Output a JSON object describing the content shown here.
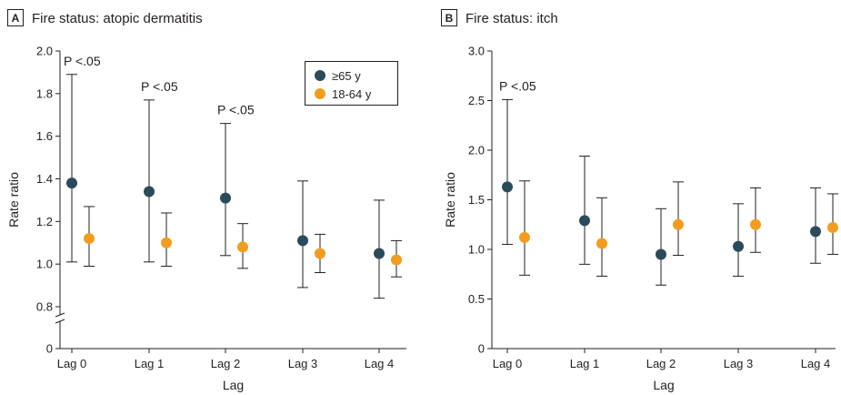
{
  "chart_data": [
    {
      "type": "scatter",
      "panel_letter": "A",
      "title": "Fire status: atopic dermatitis",
      "xlabel": "Lag",
      "ylabel": "Rate ratio",
      "categories": [
        "Lag 0",
        "Lag 1",
        "Lag 2",
        "Lag 3",
        "Lag 4"
      ],
      "ylim": [
        0,
        2.0
      ],
      "yticks": [
        "0",
        "0.8",
        "1.0",
        "1.2",
        "1.4",
        "1.6",
        "1.8",
        "2.0"
      ],
      "ytick_values": [
        0,
        0.8,
        1.0,
        1.2,
        1.4,
        1.6,
        1.8,
        2.0
      ],
      "axis_break": true,
      "legend_position": "top-right",
      "series": [
        {
          "name": "≥65 y",
          "color": "#2b4a5a",
          "values": [
            1.38,
            1.34,
            1.31,
            1.11,
            1.05
          ],
          "lower": [
            1.01,
            1.01,
            1.04,
            0.89,
            0.84
          ],
          "upper": [
            1.89,
            1.77,
            1.66,
            1.39,
            1.3
          ]
        },
        {
          "name": "18-64 y",
          "color": "#f39c1e",
          "values": [
            1.12,
            1.1,
            1.08,
            1.05,
            1.02
          ],
          "lower": [
            0.99,
            0.99,
            0.98,
            0.96,
            0.94
          ],
          "upper": [
            1.27,
            1.24,
            1.19,
            1.14,
            1.11
          ]
        }
      ],
      "annotations": [
        {
          "text": "P <.05",
          "category": "Lag 0"
        },
        {
          "text": "P <.05",
          "category": "Lag 1"
        },
        {
          "text": "P <.05",
          "category": "Lag 2"
        }
      ]
    },
    {
      "type": "scatter",
      "panel_letter": "B",
      "title": "Fire status: itch",
      "xlabel": "Lag",
      "ylabel": "Rate ratio",
      "categories": [
        "Lag 0",
        "Lag 1",
        "Lag 2",
        "Lag 3",
        "Lag 4"
      ],
      "ylim": [
        0,
        3.0
      ],
      "yticks": [
        "0",
        "0.5",
        "1.0",
        "1.5",
        "2.0",
        "2.5",
        "3.0"
      ],
      "ytick_values": [
        0,
        0.5,
        1.0,
        1.5,
        2.0,
        2.5,
        3.0
      ],
      "axis_break": false,
      "series": [
        {
          "name": "≥65 y",
          "color": "#2b4a5a",
          "values": [
            1.63,
            1.29,
            0.95,
            1.03,
            1.18
          ],
          "lower": [
            1.05,
            0.85,
            0.64,
            0.73,
            0.86
          ],
          "upper": [
            2.51,
            1.94,
            1.41,
            1.46,
            1.62
          ]
        },
        {
          "name": "18-64 y",
          "color": "#f39c1e",
          "values": [
            1.12,
            1.06,
            1.25,
            1.25,
            1.22
          ],
          "lower": [
            0.74,
            0.73,
            0.94,
            0.97,
            0.95
          ],
          "upper": [
            1.69,
            1.52,
            1.68,
            1.62,
            1.56
          ]
        }
      ],
      "annotations": [
        {
          "text": "P <.05",
          "category": "Lag 0"
        }
      ]
    }
  ]
}
